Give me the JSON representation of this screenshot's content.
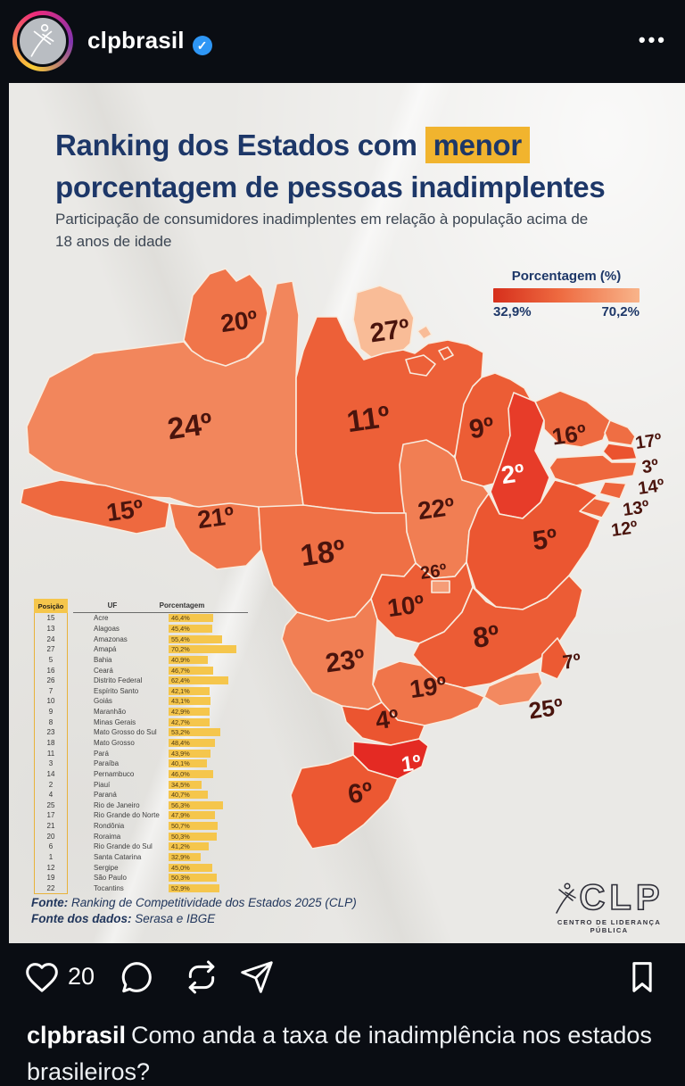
{
  "header": {
    "username": "clpbrasil",
    "verified": true,
    "more_label": "•••"
  },
  "post": {
    "title_prefix": "Ranking dos Estados com",
    "title_highlight": "menor",
    "title_line2": "porcentagem de pessoas inadimplentes",
    "subtitle": "Participação de consumidores inadimplentes em relação à população acima de 18 anos de idade",
    "legend": {
      "title": "Porcentagem (%)",
      "min_label": "32,9%",
      "max_label": "70,2%",
      "color_start": "#d62f1c",
      "color_mid": "#ee6a40",
      "color_end": "#f8b48a"
    },
    "fonte_line1_label": "Fonte:",
    "fonte_line1_text": " Ranking de Competitividade dos Estados 2025 (CLP)",
    "fonte_line2_label": "Fonte dos dados:",
    "fonte_line2_text": " Serasa e IBGE",
    "logo": {
      "text": "CLP",
      "subtext": "CENTRO DE LIDERANÇA PÚBLICA"
    }
  },
  "chart_data": {
    "type": "choropleth-map+table",
    "title": "Ranking dos Estados com menor porcentagem de pessoas inadimplentes",
    "subtitle": "Participação de consumidores inadimplentes em relação à população acima de 18 anos de idade",
    "value_label": "Porcentagem (%)",
    "value_range": [
      32.9,
      70.2
    ],
    "table_headers": [
      "Posição",
      "UF",
      "Porcentagem"
    ],
    "states": [
      {
        "rank": 15,
        "uf": "AC",
        "name": "Acre",
        "pct": "46,4%",
        "value": 46.4,
        "color": "#ee693f"
      },
      {
        "rank": 13,
        "uf": "AL",
        "name": "Alagoas",
        "pct": "45,4%",
        "value": 45.4,
        "color": "#ee653c"
      },
      {
        "rank": 24,
        "uf": "AM",
        "name": "Amazonas",
        "pct": "55,4%",
        "value": 55.4,
        "color": "#f2865c"
      },
      {
        "rank": 27,
        "uf": "AP",
        "name": "Amapá",
        "pct": "70,2%",
        "value": 70.2,
        "color": "#f9bc97"
      },
      {
        "rank": 5,
        "uf": "BA",
        "name": "Bahia",
        "pct": "40,9%",
        "value": 40.9,
        "color": "#eb5631"
      },
      {
        "rank": 16,
        "uf": "CE",
        "name": "Ceará",
        "pct": "46,7%",
        "value": 46.7,
        "color": "#ee6a40"
      },
      {
        "rank": 26,
        "uf": "DF",
        "name": "Distrito Federal",
        "pct": "62,4%",
        "value": 62.4,
        "color": "#f59d77"
      },
      {
        "rank": 7,
        "uf": "ES",
        "name": "Espírito Santo",
        "pct": "42,1%",
        "value": 42.1,
        "color": "#ec5a33"
      },
      {
        "rank": 10,
        "uf": "GO",
        "name": "Goiás",
        "pct": "43,1%",
        "value": 43.1,
        "color": "#ed5e36"
      },
      {
        "rank": 9,
        "uf": "MA",
        "name": "Maranhão",
        "pct": "42,9%",
        "value": 42.9,
        "color": "#ec5d35"
      },
      {
        "rank": 8,
        "uf": "MG",
        "name": "Minas Gerais",
        "pct": "42,7%",
        "value": 42.7,
        "color": "#ec5c35"
      },
      {
        "rank": 23,
        "uf": "MS",
        "name": "Mato Grosso do Sul",
        "pct": "53,2%",
        "value": 53.2,
        "color": "#f17f54"
      },
      {
        "rank": 18,
        "uf": "MT",
        "name": "Mato Grosso",
        "pct": "48,4%",
        "value": 48.4,
        "color": "#ef7045"
      },
      {
        "rank": 11,
        "uf": "PA",
        "name": "Pará",
        "pct": "43,9%",
        "value": 43.9,
        "color": "#ed6038"
      },
      {
        "rank": 3,
        "uf": "PB",
        "name": "Paraíba",
        "pct": "40,1%",
        "value": 40.1,
        "color": "#eb532f"
      },
      {
        "rank": 14,
        "uf": "PE",
        "name": "Pernambuco",
        "pct": "46,0%",
        "value": 46.0,
        "color": "#ee673d"
      },
      {
        "rank": 2,
        "uf": "PI",
        "name": "Piauí",
        "pct": "34,5%",
        "value": 34.5,
        "color": "#e73c29"
      },
      {
        "rank": 4,
        "uf": "PR",
        "name": "Paraná",
        "pct": "40,7%",
        "value": 40.7,
        "color": "#eb5530"
      },
      {
        "rank": 25,
        "uf": "RJ",
        "name": "Rio de Janeiro",
        "pct": "56,3%",
        "value": 56.3,
        "color": "#f38960"
      },
      {
        "rank": 17,
        "uf": "RN",
        "name": "Rio Grande do Norte",
        "pct": "47,9%",
        "value": 47.9,
        "color": "#ef6e43"
      },
      {
        "rank": 21,
        "uf": "RO",
        "name": "Rondônia",
        "pct": "50,7%",
        "value": 50.7,
        "color": "#f0774c"
      },
      {
        "rank": 20,
        "uf": "RR",
        "name": "Roraima",
        "pct": "50,3%",
        "value": 50.3,
        "color": "#f0754a"
      },
      {
        "rank": 6,
        "uf": "RS",
        "name": "Rio Grande do Sul",
        "pct": "41,2%",
        "value": 41.2,
        "color": "#ec5832"
      },
      {
        "rank": 1,
        "uf": "SC",
        "name": "Santa Catarina",
        "pct": "32,9%",
        "value": 32.9,
        "color": "#e42a23"
      },
      {
        "rank": 12,
        "uf": "SE",
        "name": "Sergipe",
        "pct": "45,0%",
        "value": 45.0,
        "color": "#ed643b"
      },
      {
        "rank": 19,
        "uf": "SP",
        "name": "São Paulo",
        "pct": "50,3%",
        "value": 50.3,
        "color": "#f0754a"
      },
      {
        "rank": 22,
        "uf": "TO",
        "name": "Tocantins",
        "pct": "52,9%",
        "value": 52.9,
        "color": "#f17e53"
      }
    ]
  },
  "actions": {
    "likes": "20"
  },
  "caption": {
    "username": "clpbrasil",
    "text": "Como anda a taxa de inadimplência nos estados brasileiros?"
  }
}
